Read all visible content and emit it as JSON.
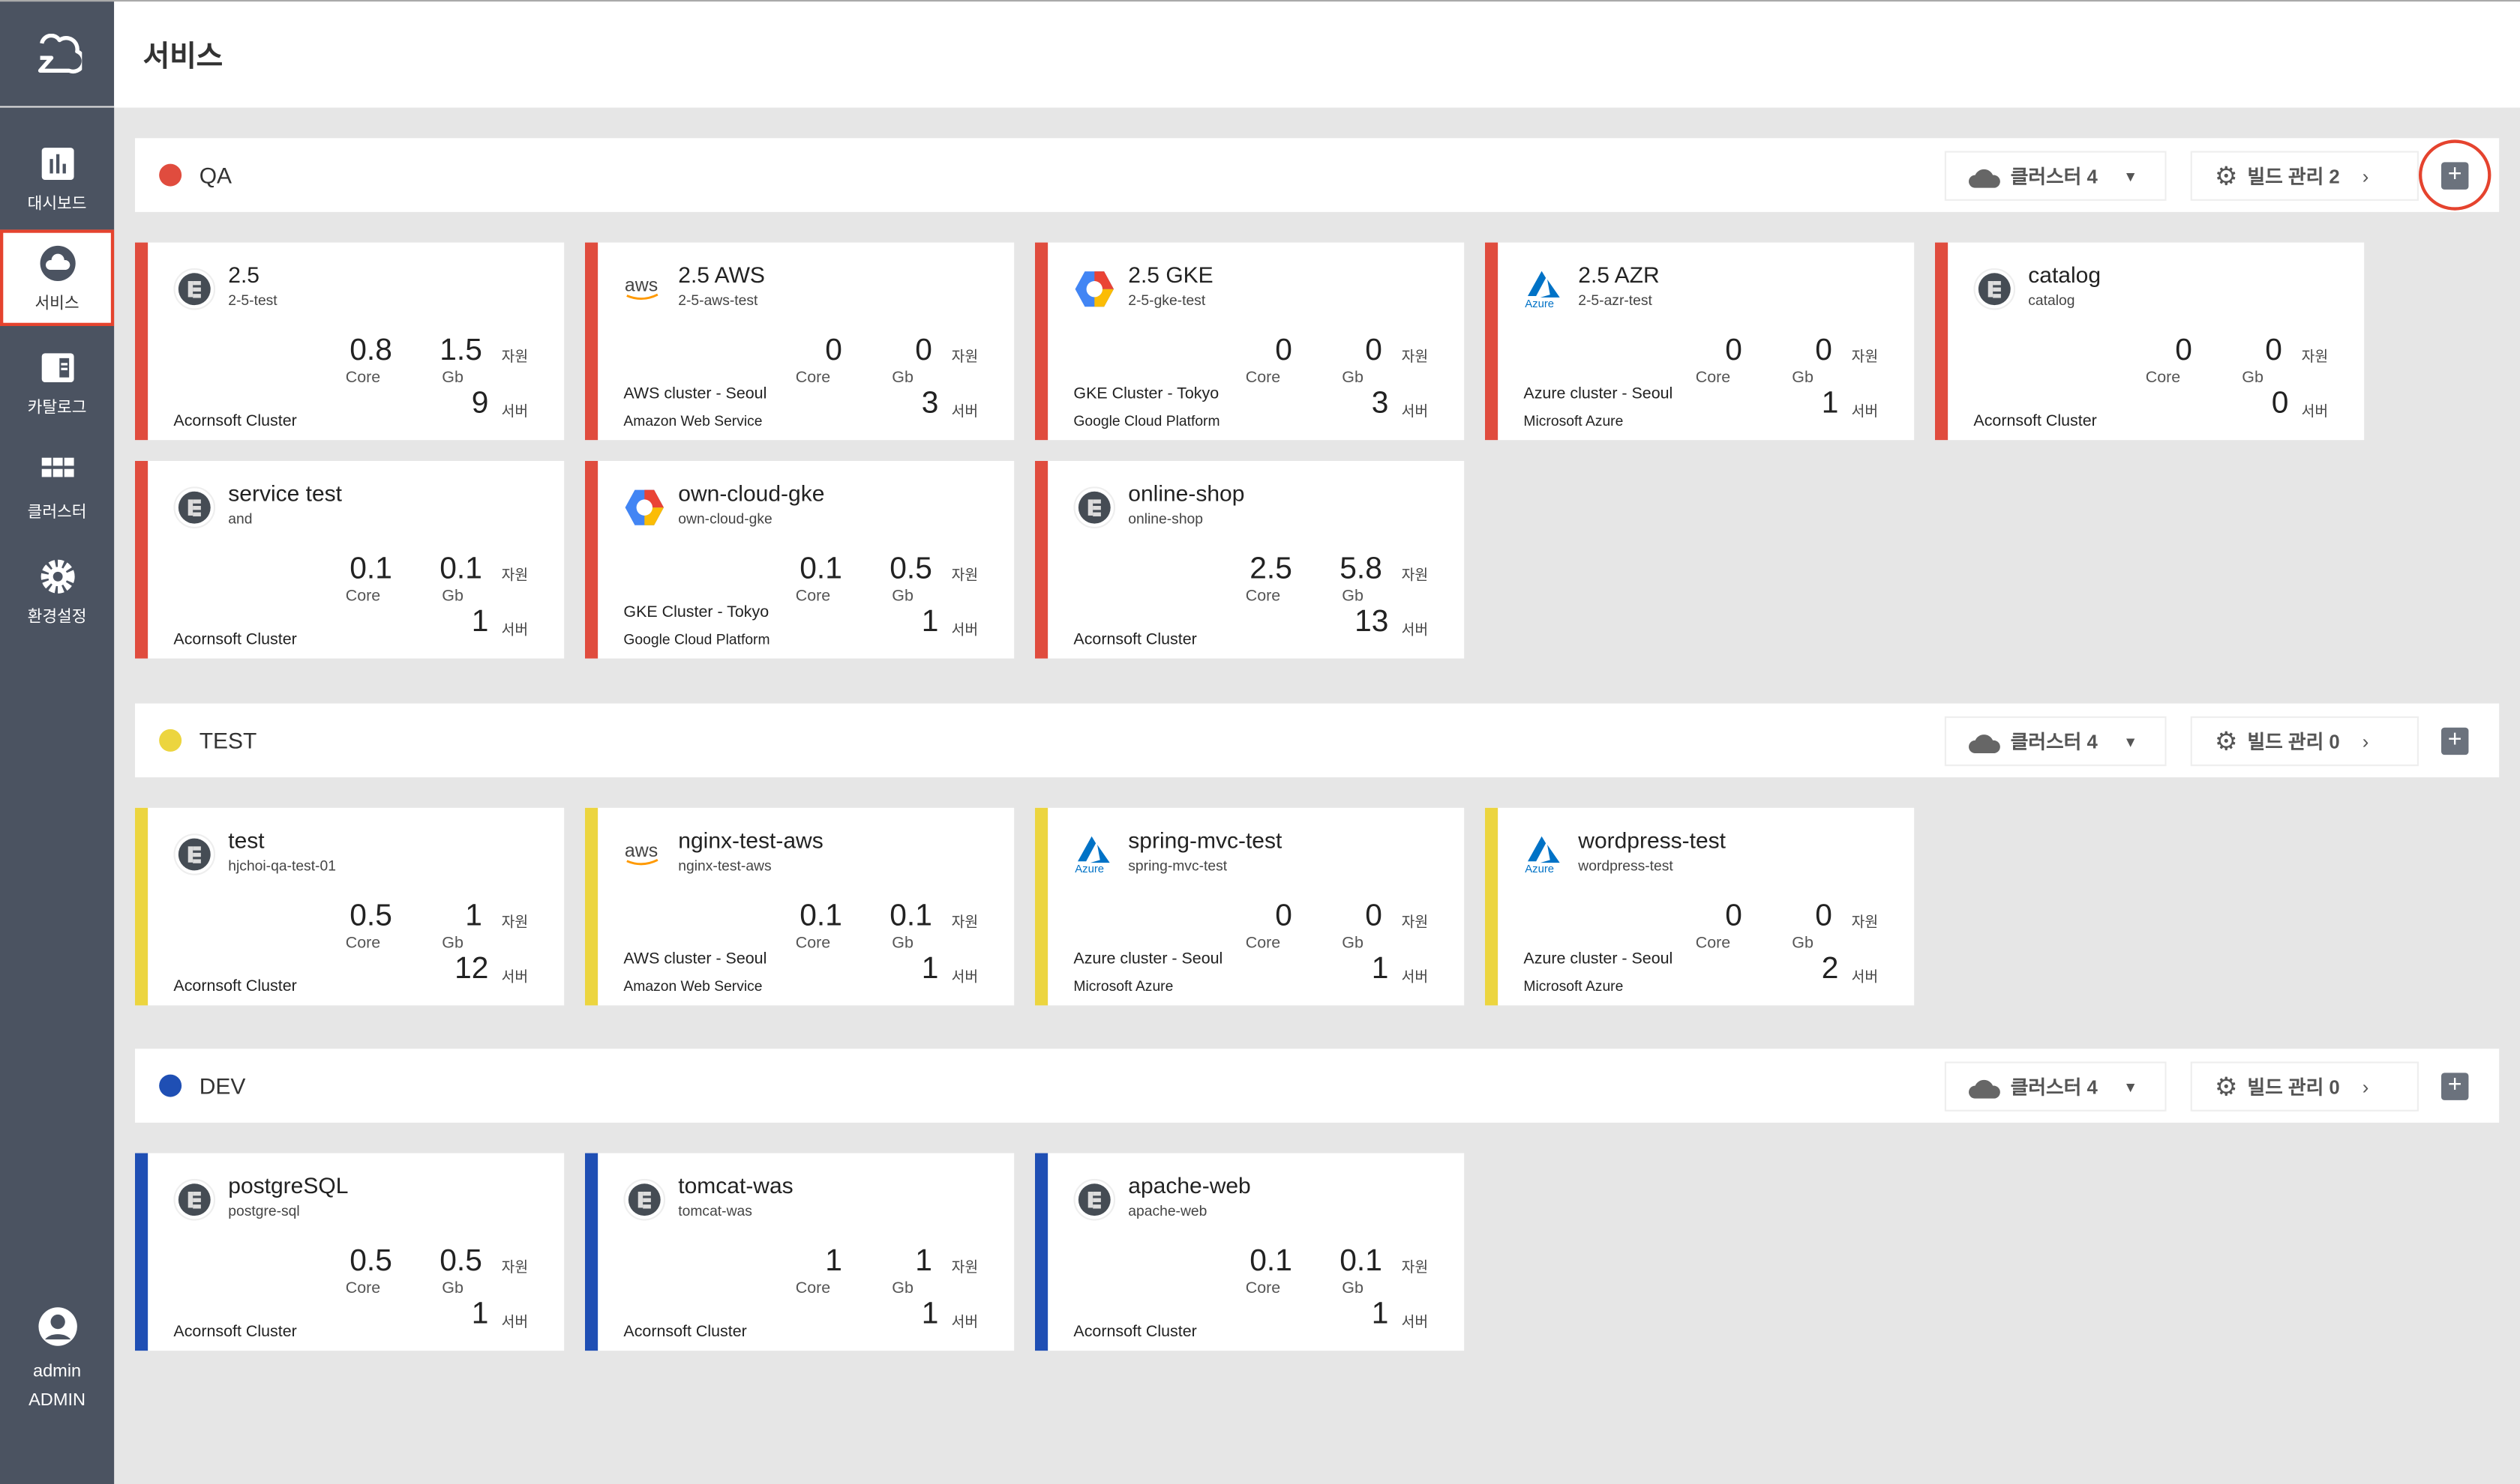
{
  "sidebar": {
    "items": [
      {
        "label": "대시보드",
        "icon": "bar-chart-icon"
      },
      {
        "label": "서비스",
        "icon": "cloud-icon",
        "active": true
      },
      {
        "label": "카탈로그",
        "icon": "catalog-icon"
      },
      {
        "label": "클러스터",
        "icon": "grid-icon"
      },
      {
        "label": "환경설정",
        "icon": "gear-icon"
      }
    ],
    "user": {
      "name": "admin",
      "role": "ADMIN"
    }
  },
  "header": {
    "title": "서비스"
  },
  "labels": {
    "core": "Core",
    "gb": "Gb",
    "resource": "자원",
    "server": "서버"
  },
  "colors": {
    "qa": "#e04c3e",
    "test": "#ecd53f",
    "dev": "#1f4fb4"
  },
  "groups": [
    {
      "name": "QA",
      "color": "#e04c3e",
      "cluster_label": "클러스터 4",
      "build_label": "빌드 관리 2",
      "highlight_add": true,
      "cards": [
        {
          "title": "2.5",
          "sub": "2-5-test",
          "core": "0.8",
          "gb": "1.5",
          "servers": "9",
          "cluster": "Acornsoft Cluster",
          "provider": "",
          "icon": "server-icon"
        },
        {
          "title": "2.5 AWS",
          "sub": "2-5-aws-test",
          "core": "0",
          "gb": "0",
          "servers": "3",
          "cluster": "AWS cluster - Seoul",
          "provider": "Amazon Web Service",
          "icon": "aws"
        },
        {
          "title": "2.5 GKE",
          "sub": "2-5-gke-test",
          "core": "0",
          "gb": "0",
          "servers": "3",
          "cluster": "GKE Cluster - Tokyo",
          "provider": "Google Cloud Platform",
          "icon": "gcp"
        },
        {
          "title": "2.5 AZR",
          "sub": "2-5-azr-test",
          "core": "0",
          "gb": "0",
          "servers": "1",
          "cluster": "Azure cluster - Seoul",
          "provider": "Microsoft Azure",
          "icon": "azure"
        },
        {
          "title": "catalog",
          "sub": "catalog",
          "core": "0",
          "gb": "0",
          "servers": "0",
          "cluster": "Acornsoft Cluster",
          "provider": "",
          "icon": "server-icon"
        },
        {
          "title": "service test",
          "sub": "and",
          "core": "0.1",
          "gb": "0.1",
          "servers": "1",
          "cluster": "Acornsoft Cluster",
          "provider": "",
          "icon": "server-icon"
        },
        {
          "title": "own-cloud-gke",
          "sub": "own-cloud-gke",
          "core": "0.1",
          "gb": "0.5",
          "servers": "1",
          "cluster": "GKE Cluster - Tokyo",
          "provider": "Google Cloud Platform",
          "icon": "gcp"
        },
        {
          "title": "online-shop",
          "sub": "online-shop",
          "core": "2.5",
          "gb": "5.8",
          "servers": "13",
          "cluster": "Acornsoft Cluster",
          "provider": "",
          "icon": "server-icon"
        }
      ]
    },
    {
      "name": "TEST",
      "color": "#ecd53f",
      "cluster_label": "클러스터 4",
      "build_label": "빌드 관리 0",
      "cards": [
        {
          "title": "test",
          "sub": "hjchoi-qa-test-01",
          "core": "0.5",
          "gb": "1",
          "servers": "12",
          "cluster": "Acornsoft Cluster",
          "provider": "",
          "icon": "server-icon"
        },
        {
          "title": "nginx-test-aws",
          "sub": "nginx-test-aws",
          "core": "0.1",
          "gb": "0.1",
          "servers": "1",
          "cluster": "AWS cluster - Seoul",
          "provider": "Amazon Web Service",
          "icon": "aws"
        },
        {
          "title": "spring-mvc-test",
          "sub": "spring-mvc-test",
          "core": "0",
          "gb": "0",
          "servers": "1",
          "cluster": "Azure cluster - Seoul",
          "provider": "Microsoft Azure",
          "icon": "azure"
        },
        {
          "title": "wordpress-test",
          "sub": "wordpress-test",
          "core": "0",
          "gb": "0",
          "servers": "2",
          "cluster": "Azure cluster - Seoul",
          "provider": "Microsoft Azure",
          "icon": "azure"
        }
      ]
    },
    {
      "name": "DEV",
      "color": "#1f4fb4",
      "cluster_label": "클러스터 4",
      "build_label": "빌드 관리 0",
      "cards": [
        {
          "title": "postgreSQL",
          "sub": "postgre-sql",
          "core": "0.5",
          "gb": "0.5",
          "servers": "1",
          "cluster": "Acornsoft Cluster",
          "provider": "",
          "icon": "server-icon"
        },
        {
          "title": "tomcat-was",
          "sub": "tomcat-was",
          "core": "1",
          "gb": "1",
          "servers": "1",
          "cluster": "Acornsoft Cluster",
          "provider": "",
          "icon": "server-icon"
        },
        {
          "title": "apache-web",
          "sub": "apache-web",
          "core": "0.1",
          "gb": "0.1",
          "servers": "1",
          "cluster": "Acornsoft Cluster",
          "provider": "",
          "icon": "server-icon"
        }
      ]
    }
  ]
}
